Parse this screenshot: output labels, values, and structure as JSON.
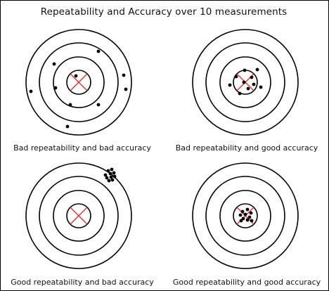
{
  "title": "Repeatability and Accuracy over 10 measurements",
  "colors": {
    "rings": "#000000",
    "cross": "#e8312f",
    "dots": "#000000",
    "frame": "#000000"
  },
  "targets": [
    {
      "caption": "Bad repeatability and bad accuracy",
      "shots": [
        [
          28,
          -44
        ],
        [
          -4,
          -9
        ],
        [
          -35,
          -26
        ],
        [
          -68,
          13
        ],
        [
          -33,
          8
        ],
        [
          -12,
          32
        ],
        [
          64,
          -10
        ],
        [
          67,
          10
        ],
        [
          28,
          32
        ],
        [
          -16,
          63
        ]
      ]
    },
    {
      "caption": "Bad repeatability and good accuracy",
      "shots": [
        [
          17,
          -18
        ],
        [
          -1,
          -17
        ],
        [
          -13,
          -8
        ],
        [
          9,
          -7
        ],
        [
          12,
          3
        ],
        [
          -22,
          4
        ],
        [
          4,
          9
        ],
        [
          22,
          7
        ],
        [
          -8,
          16
        ],
        [
          -2,
          0
        ]
      ]
    },
    {
      "caption": "Good repeatability and bad accuracy",
      "shots": [
        [
          42,
          -64
        ],
        [
          47,
          -66
        ],
        [
          38,
          -58
        ],
        [
          45,
          -60
        ],
        [
          50,
          -61
        ],
        [
          40,
          -54
        ],
        [
          46,
          -55
        ],
        [
          51,
          -56
        ],
        [
          43,
          -50
        ],
        [
          48,
          -51
        ]
      ]
    },
    {
      "caption": "Good repeatability and good accuracy",
      "shots": [
        [
          -4,
          -6
        ],
        [
          3,
          -9
        ],
        [
          8,
          -4
        ],
        [
          -7,
          -1
        ],
        [
          0,
          -2
        ],
        [
          6,
          2
        ],
        [
          -3,
          4
        ],
        [
          3,
          6
        ],
        [
          -6,
          7
        ],
        [
          9,
          7
        ]
      ]
    }
  ]
}
